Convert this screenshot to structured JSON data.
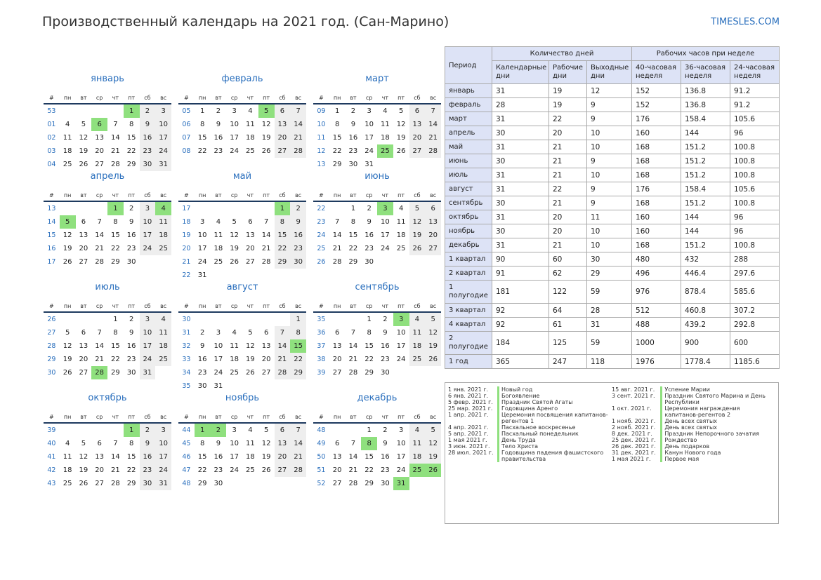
{
  "title": "Производственный календарь на 2021 год. (Сан-Марино)",
  "brand": "TIMESLES.COM",
  "colors": {
    "accent": "#2a6fbd",
    "holiday": "#8fe07e",
    "weekend": "#eeeeee",
    "header_bg": "#dde3f6"
  },
  "weekday_headers": [
    "#",
    "пн",
    "вт",
    "ср",
    "чт",
    "пт",
    "сб",
    "вс"
  ],
  "months": [
    {
      "name": "январь",
      "weeks": [
        [
          "53",
          "",
          "",
          "",
          "",
          "1",
          "2",
          "3"
        ],
        [
          "01",
          "4",
          "5",
          "6",
          "7",
          "8",
          "9",
          "10"
        ],
        [
          "02",
          "11",
          "12",
          "13",
          "14",
          "15",
          "16",
          "17"
        ],
        [
          "03",
          "18",
          "19",
          "20",
          "21",
          "22",
          "23",
          "24"
        ],
        [
          "04",
          "25",
          "26",
          "27",
          "28",
          "29",
          "30",
          "31"
        ]
      ],
      "holidays": [
        "1",
        "6"
      ]
    },
    {
      "name": "февраль",
      "weeks": [
        [
          "05",
          "1",
          "2",
          "3",
          "4",
          "5",
          "6",
          "7"
        ],
        [
          "06",
          "8",
          "9",
          "10",
          "11",
          "12",
          "13",
          "14"
        ],
        [
          "07",
          "15",
          "16",
          "17",
          "18",
          "19",
          "20",
          "21"
        ],
        [
          "08",
          "22",
          "23",
          "24",
          "25",
          "26",
          "27",
          "28"
        ]
      ],
      "holidays": [
        "5"
      ]
    },
    {
      "name": "март",
      "weeks": [
        [
          "09",
          "1",
          "2",
          "3",
          "4",
          "5",
          "6",
          "7"
        ],
        [
          "10",
          "8",
          "9",
          "10",
          "11",
          "12",
          "13",
          "14"
        ],
        [
          "11",
          "15",
          "16",
          "17",
          "18",
          "19",
          "20",
          "21"
        ],
        [
          "12",
          "22",
          "23",
          "24",
          "25",
          "26",
          "27",
          "28"
        ],
        [
          "13",
          "29",
          "30",
          "31",
          "",
          "",
          "",
          ""
        ]
      ],
      "holidays": [
        "25"
      ]
    },
    {
      "name": "апрель",
      "weeks": [
        [
          "13",
          "",
          "",
          "",
          "1",
          "2",
          "3",
          "4"
        ],
        [
          "14",
          "5",
          "6",
          "7",
          "8",
          "9",
          "10",
          "11"
        ],
        [
          "15",
          "12",
          "13",
          "14",
          "15",
          "16",
          "17",
          "18"
        ],
        [
          "16",
          "19",
          "20",
          "21",
          "22",
          "23",
          "24",
          "25"
        ],
        [
          "17",
          "26",
          "27",
          "28",
          "29",
          "30",
          "",
          ""
        ]
      ],
      "holidays": [
        "1",
        "4",
        "5"
      ]
    },
    {
      "name": "май",
      "weeks": [
        [
          "17",
          "",
          "",
          "",
          "",
          "",
          "1",
          "2"
        ],
        [
          "18",
          "3",
          "4",
          "5",
          "6",
          "7",
          "8",
          "9"
        ],
        [
          "19",
          "10",
          "11",
          "12",
          "13",
          "14",
          "15",
          "16"
        ],
        [
          "20",
          "17",
          "18",
          "19",
          "20",
          "21",
          "22",
          "23"
        ],
        [
          "21",
          "24",
          "25",
          "26",
          "27",
          "28",
          "29",
          "30"
        ],
        [
          "22",
          "31",
          "",
          "",
          "",
          "",
          "",
          ""
        ]
      ],
      "holidays": [
        "1"
      ]
    },
    {
      "name": "июнь",
      "weeks": [
        [
          "22",
          "",
          "1",
          "2",
          "3",
          "4",
          "5",
          "6"
        ],
        [
          "23",
          "7",
          "8",
          "9",
          "10",
          "11",
          "12",
          "13"
        ],
        [
          "24",
          "14",
          "15",
          "16",
          "17",
          "18",
          "19",
          "20"
        ],
        [
          "25",
          "21",
          "22",
          "23",
          "24",
          "25",
          "26",
          "27"
        ],
        [
          "26",
          "28",
          "29",
          "30",
          "",
          "",
          "",
          ""
        ]
      ],
      "holidays": [
        "3"
      ]
    },
    {
      "name": "июль",
      "weeks": [
        [
          "26",
          "",
          "",
          "",
          "1",
          "2",
          "3",
          "4"
        ],
        [
          "27",
          "5",
          "6",
          "7",
          "8",
          "9",
          "10",
          "11"
        ],
        [
          "28",
          "12",
          "13",
          "14",
          "15",
          "16",
          "17",
          "18"
        ],
        [
          "29",
          "19",
          "20",
          "21",
          "22",
          "23",
          "24",
          "25"
        ],
        [
          "30",
          "26",
          "27",
          "28",
          "29",
          "30",
          "31",
          ""
        ]
      ],
      "holidays": [
        "28"
      ]
    },
    {
      "name": "август",
      "weeks": [
        [
          "30",
          "",
          "",
          "",
          "",
          "",
          "",
          "1"
        ],
        [
          "31",
          "2",
          "3",
          "4",
          "5",
          "6",
          "7",
          "8"
        ],
        [
          "32",
          "9",
          "10",
          "11",
          "12",
          "13",
          "14",
          "15"
        ],
        [
          "33",
          "16",
          "17",
          "18",
          "19",
          "20",
          "21",
          "22"
        ],
        [
          "34",
          "23",
          "24",
          "25",
          "26",
          "27",
          "28",
          "29"
        ],
        [
          "35",
          "30",
          "31",
          "",
          "",
          "",
          "",
          ""
        ]
      ],
      "holidays": [
        "15"
      ]
    },
    {
      "name": "сентябрь",
      "weeks": [
        [
          "35",
          "",
          "",
          "1",
          "2",
          "3",
          "4",
          "5"
        ],
        [
          "36",
          "6",
          "7",
          "8",
          "9",
          "10",
          "11",
          "12"
        ],
        [
          "37",
          "13",
          "14",
          "15",
          "16",
          "17",
          "18",
          "19"
        ],
        [
          "38",
          "20",
          "21",
          "22",
          "23",
          "24",
          "25",
          "26"
        ],
        [
          "39",
          "27",
          "28",
          "29",
          "30",
          "",
          "",
          ""
        ]
      ],
      "holidays": [
        "3"
      ]
    },
    {
      "name": "октябрь",
      "weeks": [
        [
          "39",
          "",
          "",
          "",
          "",
          "1",
          "2",
          "3"
        ],
        [
          "40",
          "4",
          "5",
          "6",
          "7",
          "8",
          "9",
          "10"
        ],
        [
          "41",
          "11",
          "12",
          "13",
          "14",
          "15",
          "16",
          "17"
        ],
        [
          "42",
          "18",
          "19",
          "20",
          "21",
          "22",
          "23",
          "24"
        ],
        [
          "43",
          "25",
          "26",
          "27",
          "28",
          "29",
          "30",
          "31"
        ]
      ],
      "holidays": [
        "1"
      ]
    },
    {
      "name": "ноябрь",
      "weeks": [
        [
          "44",
          "1",
          "2",
          "3",
          "4",
          "5",
          "6",
          "7"
        ],
        [
          "45",
          "8",
          "9",
          "10",
          "11",
          "12",
          "13",
          "14"
        ],
        [
          "46",
          "15",
          "16",
          "17",
          "18",
          "19",
          "20",
          "21"
        ],
        [
          "47",
          "22",
          "23",
          "24",
          "25",
          "26",
          "27",
          "28"
        ],
        [
          "48",
          "29",
          "30",
          "",
          "",
          "",
          "",
          ""
        ]
      ],
      "holidays": [
        "1",
        "2"
      ]
    },
    {
      "name": "декабрь",
      "weeks": [
        [
          "48",
          "",
          "",
          "1",
          "2",
          "3",
          "4",
          "5"
        ],
        [
          "49",
          "6",
          "7",
          "8",
          "9",
          "10",
          "11",
          "12"
        ],
        [
          "50",
          "13",
          "14",
          "15",
          "16",
          "17",
          "18",
          "19"
        ],
        [
          "51",
          "20",
          "21",
          "22",
          "23",
          "24",
          "25",
          "26"
        ],
        [
          "52",
          "27",
          "28",
          "29",
          "30",
          "31",
          "",
          ""
        ]
      ],
      "holidays": [
        "8",
        "25",
        "26",
        "31"
      ]
    }
  ],
  "summary": {
    "period_header": "Период",
    "days_header": "Количество дней",
    "hours_header": "Рабочих часов при неделе",
    "sub_headers": [
      "Календарные дни",
      "Рабочие дни",
      "Выходные дни",
      "40-часовая неделя",
      "36-часовая неделя",
      "24-часовая неделя"
    ],
    "rows": [
      [
        "январь",
        "31",
        "19",
        "12",
        "152",
        "136.8",
        "91.2"
      ],
      [
        "февраль",
        "28",
        "19",
        "9",
        "152",
        "136.8",
        "91.2"
      ],
      [
        "март",
        "31",
        "22",
        "9",
        "176",
        "158.4",
        "105.6"
      ],
      [
        "апрель",
        "30",
        "20",
        "10",
        "160",
        "144",
        "96"
      ],
      [
        "май",
        "31",
        "21",
        "10",
        "168",
        "151.2",
        "100.8"
      ],
      [
        "июнь",
        "30",
        "21",
        "9",
        "168",
        "151.2",
        "100.8"
      ],
      [
        "июль",
        "31",
        "21",
        "10",
        "168",
        "151.2",
        "100.8"
      ],
      [
        "август",
        "31",
        "22",
        "9",
        "176",
        "158.4",
        "105.6"
      ],
      [
        "сентябрь",
        "30",
        "21",
        "9",
        "168",
        "151.2",
        "100.8"
      ],
      [
        "октябрь",
        "31",
        "20",
        "11",
        "160",
        "144",
        "96"
      ],
      [
        "ноябрь",
        "30",
        "20",
        "10",
        "160",
        "144",
        "96"
      ],
      [
        "декабрь",
        "31",
        "21",
        "10",
        "168",
        "151.2",
        "100.8"
      ],
      [
        "1 квартал",
        "90",
        "60",
        "30",
        "480",
        "432",
        "288"
      ],
      [
        "2 квартал",
        "91",
        "62",
        "29",
        "496",
        "446.4",
        "297.6"
      ],
      [
        "1 полугодие",
        "181",
        "122",
        "59",
        "976",
        "878.4",
        "585.6"
      ],
      [
        "3 квартал",
        "92",
        "64",
        "28",
        "512",
        "460.8",
        "307.2"
      ],
      [
        "4 квартал",
        "92",
        "61",
        "31",
        "488",
        "439.2",
        "292.8"
      ],
      [
        "2 полугодие",
        "184",
        "125",
        "59",
        "1000",
        "900",
        "600"
      ],
      [
        "1 год",
        "365",
        "247",
        "118",
        "1976",
        "1778.4",
        "1185.6"
      ]
    ]
  },
  "holidays_list": {
    "col1": [
      {
        "date": "1 янв. 2021 г.",
        "name": "Новый год"
      },
      {
        "date": "6 янв. 2021 г.",
        "name": "Богоявление"
      },
      {
        "date": "5 февр. 2021 г.",
        "name": "Праздник Святой Агаты"
      },
      {
        "date": "25 мар. 2021 г.",
        "name": "Годовщина Аренго"
      },
      {
        "date": "1 апр. 2021 г.",
        "name": "Церемония посвящения капитанов-регентов 1"
      },
      {
        "date": "4 апр. 2021 г.",
        "name": "Пасхальное воскресенье"
      },
      {
        "date": "5 апр. 2021 г.",
        "name": "Пасхальный понедельник"
      },
      {
        "date": "1 мая 2021 г.",
        "name": "День Труда"
      },
      {
        "date": "3 июн. 2021 г.",
        "name": "Тело Христа"
      },
      {
        "date": "28 июл. 2021 г.",
        "name": "Годовщина падения фашистского правительства"
      }
    ],
    "col2": [
      {
        "date": "15 авг. 2021 г.",
        "name": "Успение Марии"
      },
      {
        "date": "3 сент. 2021 г.",
        "name": "Праздник Святого Марина и День Республики"
      },
      {
        "date": "1 окт. 2021 г.",
        "name": "Церемония награждения капитанов-регентов 2"
      },
      {
        "date": "1 нояб. 2021 г.",
        "name": "День всех святых"
      },
      {
        "date": "2 нояб. 2021 г.",
        "name": "День всех святых"
      },
      {
        "date": "8 дек. 2021 г.",
        "name": "Праздник Непорочного зачатия"
      },
      {
        "date": "25 дек. 2021 г.",
        "name": "Рождество"
      },
      {
        "date": "26 дек. 2021 г.",
        "name": "День подарков"
      },
      {
        "date": "31 дек. 2021 г.",
        "name": "Канун Нового года"
      },
      {
        "date": "1 мая 2021 г.",
        "name": "Первое мая"
      }
    ]
  }
}
